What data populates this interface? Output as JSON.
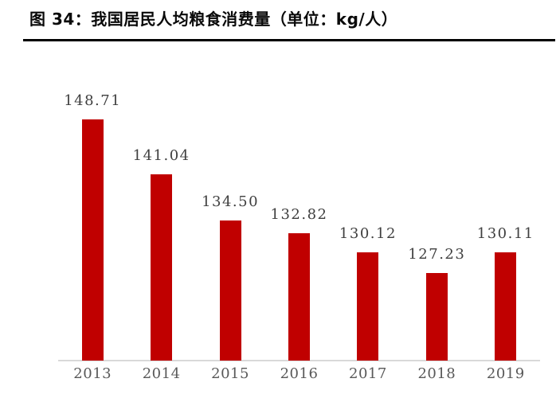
{
  "header": {
    "title": "图 34：我国居民人均粮食消费量（单位：kg/人）"
  },
  "chart_data": {
    "type": "bar",
    "title": "图 34：我国居民人均粮食消费量（单位：kg/人）",
    "unit": "kg/人",
    "categories": [
      "2013",
      "2014",
      "2015",
      "2016",
      "2017",
      "2018",
      "2019"
    ],
    "values": [
      148.71,
      141.04,
      134.5,
      132.82,
      130.12,
      127.23,
      130.11
    ],
    "value_labels": [
      "148.71",
      "141.04",
      "134.50",
      "132.82",
      "130.12",
      "127.23",
      "130.11"
    ],
    "xlabel": "",
    "ylabel": "",
    "ylim": [
      115,
      150
    ],
    "grid": false,
    "legend": "none",
    "bar_color": "#c00000",
    "axis_line_color": "#d9d9d9",
    "label_color": "#3f3f3f",
    "tick_label_color": "#595959"
  }
}
